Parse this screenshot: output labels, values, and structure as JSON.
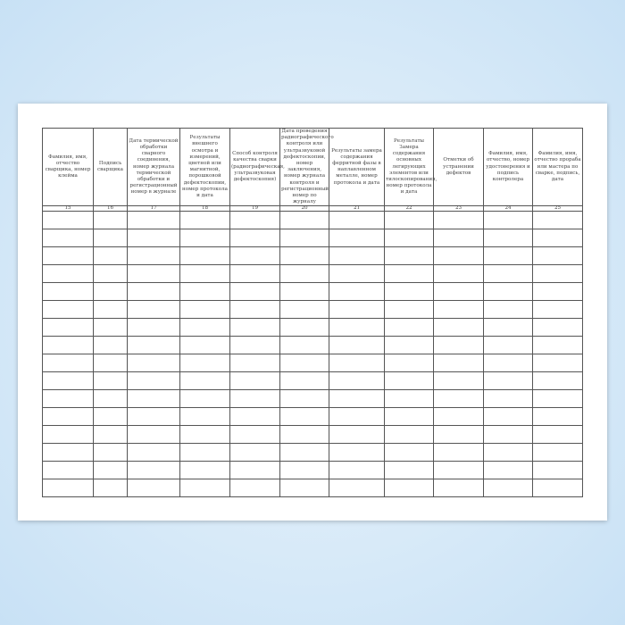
{
  "columns": [
    {
      "header": "Фамилия, имя, отчество сварщика, номер клейма",
      "number": "15"
    },
    {
      "header": "Подпись сварщика",
      "number": "16"
    },
    {
      "header": "Дата термической обработки сварного соединения, номер журнала термической обработки и регистрационный номер в журнале",
      "number": "17"
    },
    {
      "header": "Результаты внешнего осмотра и измерений, цветной или магнитной, порошковой дефектоскопии, номер протокола и дата",
      "number": "18"
    },
    {
      "header": "Способ контроля качества сварки (радиографическая, ультразвуковая дефектоскопия)",
      "number": "19"
    },
    {
      "header": "Дата проведения радиографического контроля или ультразвуковой дефектоскопии, номер заключения, номер журнала контроля и регистрационный номер по журналу",
      "number": "20"
    },
    {
      "header": "Результаты замера содержания ферритной фазы в наплавленном металле, номер протокола и дата",
      "number": "21"
    },
    {
      "header": "Результаты Замера содержания основных легирующих элементов или тилоскопирования, номер протокола и дата",
      "number": "22"
    },
    {
      "header": "Отметки об устранении дефектов",
      "number": "23"
    },
    {
      "header": "Фамилия, имя, отчество, номер удостоверения и подпись контролера",
      "number": "24"
    },
    {
      "header": "Фамилия, имя, отчество прораба или мастера по сварке, подпись, дата",
      "number": "25"
    }
  ],
  "empty_rows": 16
}
